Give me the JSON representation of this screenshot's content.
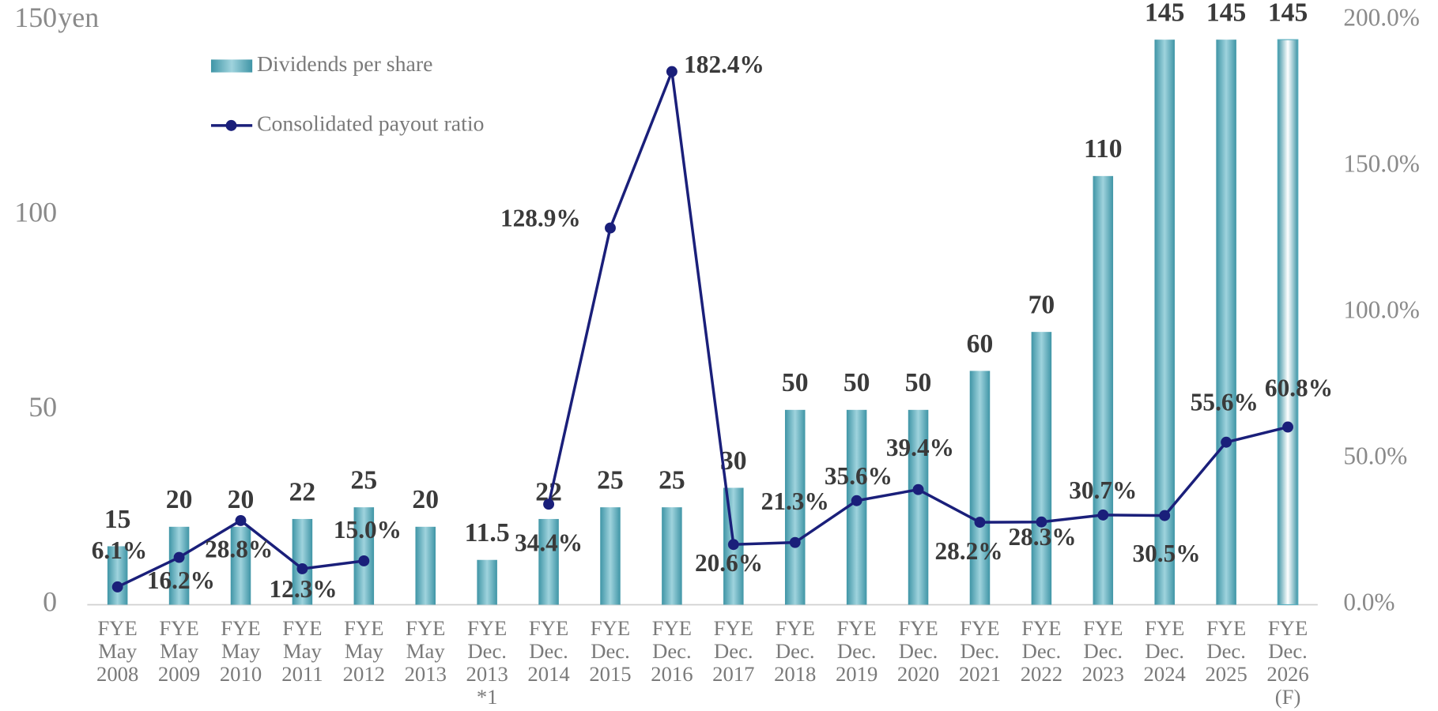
{
  "chart_data": {
    "type": "bar",
    "y_unit": "yen",
    "categories": [
      [
        "FYE",
        "May",
        "2008"
      ],
      [
        "FYE",
        "May",
        "2009"
      ],
      [
        "FYE",
        "May",
        "2010"
      ],
      [
        "FYE",
        "May",
        "2011"
      ],
      [
        "FYE",
        "May",
        "2012"
      ],
      [
        "FYE",
        "May",
        "2013"
      ],
      [
        "FYE",
        "Dec.",
        "2013",
        "*1"
      ],
      [
        "FYE",
        "Dec.",
        "2014"
      ],
      [
        "FYE",
        "Dec.",
        "2015"
      ],
      [
        "FYE",
        "Dec.",
        "2016"
      ],
      [
        "FYE",
        "Dec.",
        "2017"
      ],
      [
        "FYE",
        "Dec.",
        "2018"
      ],
      [
        "FYE",
        "Dec.",
        "2019"
      ],
      [
        "FYE",
        "Dec.",
        "2020"
      ],
      [
        "FYE",
        "Dec.",
        "2021"
      ],
      [
        "FYE",
        "Dec.",
        "2022"
      ],
      [
        "FYE",
        "Dec.",
        "2023"
      ],
      [
        "FYE",
        "Dec.",
        "2024"
      ],
      [
        "FYE",
        "Dec.",
        "2025"
      ],
      [
        "FYE",
        "Dec.",
        "2026",
        "(F)"
      ]
    ],
    "series": [
      {
        "name": "Dividends per share",
        "type": "bar",
        "color": "#5aafbf",
        "values": [
          15,
          20,
          20,
          22,
          25,
          20,
          11.5,
          22,
          25,
          25,
          30,
          50,
          50,
          50,
          60,
          70,
          110,
          145,
          145,
          145
        ]
      },
      {
        "name": "Consolidated payout ratio",
        "type": "line",
        "color": "#1a1f7a",
        "axis": "y2",
        "values": [
          6.1,
          16.2,
          28.8,
          12.3,
          15.0,
          null,
          null,
          34.4,
          128.9,
          182.4,
          20.6,
          21.3,
          35.6,
          39.4,
          28.2,
          28.3,
          30.7,
          30.5,
          55.6,
          60.8
        ],
        "value_labels": [
          "6.1%",
          "16.2%",
          "28.8%",
          "12.3%",
          "15.0%",
          null,
          null,
          "34.4%",
          "128.9%",
          "182.4%",
          "20.6%",
          "21.3%",
          "35.6%",
          "39.4%",
          "28.2%",
          "28.3%",
          "30.7%",
          "30.5%",
          "55.6%",
          "60.8%"
        ]
      }
    ],
    "ylim": [
      0,
      150
    ],
    "yticks": [
      0,
      50,
      100,
      150
    ],
    "y2lim": [
      0,
      200
    ],
    "y2ticks": [
      {
        "value": 0,
        "label": "0.0%"
      },
      {
        "value": 50,
        "label": "50.0%"
      },
      {
        "value": 100,
        "label": "100.0%"
      },
      {
        "value": 150,
        "label": "150.0%"
      },
      {
        "value": 200,
        "label": "200.0%"
      }
    ],
    "legend": "upper left"
  }
}
